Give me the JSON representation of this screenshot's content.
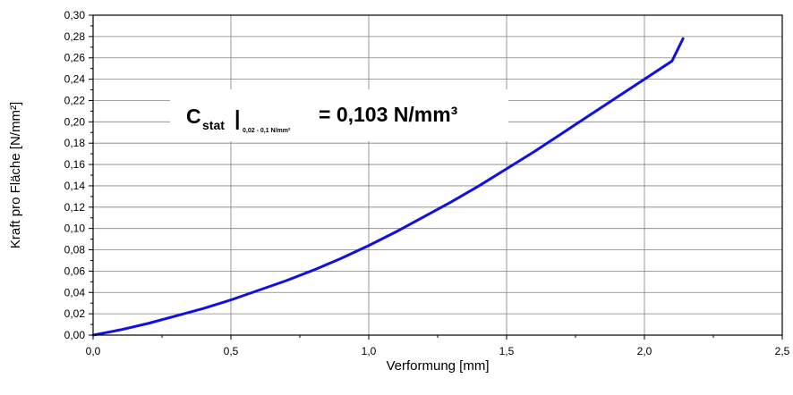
{
  "chart_data": {
    "type": "line",
    "xlabel": "Verformung [mm]",
    "ylabel": "Kraft pro Fläche [N/mm²]",
    "xlim": [
      0,
      2.5
    ],
    "ylim": [
      0,
      0.3
    ],
    "x_ticks": [
      "0,0",
      "0,5",
      "1,0",
      "1,5",
      "2,0",
      "2,5"
    ],
    "x_tick_values": [
      0,
      0.5,
      1.0,
      1.5,
      2.0,
      2.5
    ],
    "y_ticks": [
      "0,00",
      "0,02",
      "0,04",
      "0,06",
      "0,08",
      "0,10",
      "0,12",
      "0,14",
      "0,16",
      "0,18",
      "0,20",
      "0,22",
      "0,24",
      "0,26",
      "0,28",
      "0,30"
    ],
    "y_tick_values": [
      0,
      0.02,
      0.04,
      0.06,
      0.08,
      0.1,
      0.12,
      0.14,
      0.16,
      0.18,
      0.2,
      0.22,
      0.24,
      0.26,
      0.28,
      0.3
    ],
    "grid": true,
    "series": [
      {
        "color": "#1010e0",
        "x": [
          0,
          0.1,
          0.2,
          0.3,
          0.4,
          0.5,
          0.6,
          0.7,
          0.8,
          0.9,
          1.0,
          1.1,
          1.2,
          1.3,
          1.4,
          1.5,
          1.6,
          1.7,
          1.8,
          1.9,
          2.0,
          2.1,
          2.14
        ],
        "y": [
          0,
          0.005,
          0.011,
          0.018,
          0.025,
          0.033,
          0.042,
          0.051,
          0.061,
          0.072,
          0.084,
          0.097,
          0.111,
          0.125,
          0.14,
          0.156,
          0.172,
          0.189,
          0.206,
          0.223,
          0.24,
          0.257,
          0.278
        ]
      }
    ],
    "annotation": {
      "main": "C",
      "subscript": "stat",
      "separator": "|",
      "range": "0,02 - 0,1 N/mm²",
      "value": "= 0,103 N/mm³"
    }
  }
}
